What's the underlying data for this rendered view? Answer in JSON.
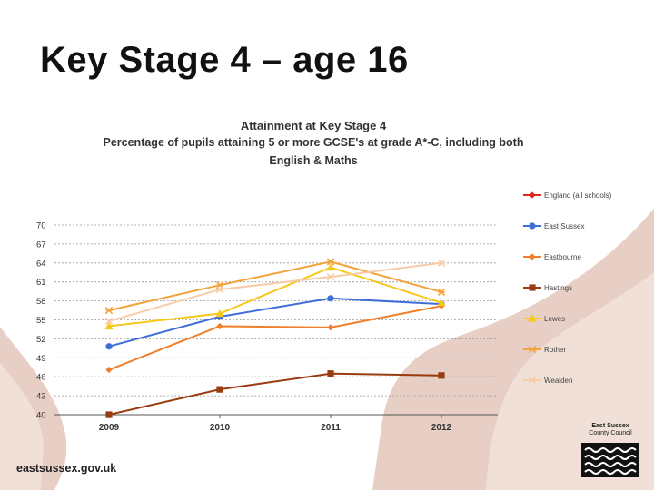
{
  "slide": {
    "title": "Key Stage 4 – age 16",
    "footer_url": "eastsussex.gov.uk",
    "logo": {
      "line1": "East Sussex",
      "line2": "County Council"
    }
  },
  "colors": {
    "background_shape_dark": "#e7cfc5",
    "background_shape_light": "#f3e3dc"
  },
  "chart_data": {
    "type": "line",
    "title_lines": [
      "Attainment at Key Stage 4",
      "Percentage of pupils attaining 5 or more GCSE's at grade A*-C, including both",
      "English & Maths"
    ],
    "categories": [
      "2009",
      "2010",
      "2011",
      "2012"
    ],
    "y_ticks": [
      40,
      43,
      46,
      49,
      52,
      55,
      58,
      61,
      64,
      67,
      70
    ],
    "ylim": [
      40,
      70
    ],
    "grid": true,
    "legend_position": "right",
    "series": [
      {
        "name": "England (all schools)",
        "color": "#e0281e",
        "marker": "diamond",
        "values": [
          null,
          null,
          null,
          null
        ]
      },
      {
        "name": "East Sussex",
        "color": "#3e6fd8",
        "marker": "circle",
        "values": [
          50.8,
          55.5,
          58.4,
          57.5
        ]
      },
      {
        "name": "Eastbourne",
        "color": "#f07e2a",
        "marker": "diamond",
        "values": [
          47.1,
          54.0,
          53.8,
          57.2
        ]
      },
      {
        "name": "Hastings",
        "color": "#9a3c10",
        "marker": "square",
        "values": [
          40.0,
          44.0,
          46.5,
          46.2
        ]
      },
      {
        "name": "Lewes",
        "color": "#f7c81a",
        "marker": "triangle",
        "values": [
          54.0,
          56.0,
          63.3,
          57.7
        ]
      },
      {
        "name": "Rother",
        "color": "#f3a33a",
        "marker": "star",
        "values": [
          56.5,
          60.5,
          64.2,
          59.4
        ]
      },
      {
        "name": "Wealden",
        "color": "#f7cba8",
        "marker": "x",
        "values": [
          54.8,
          59.8,
          61.8,
          64.0
        ]
      }
    ]
  }
}
